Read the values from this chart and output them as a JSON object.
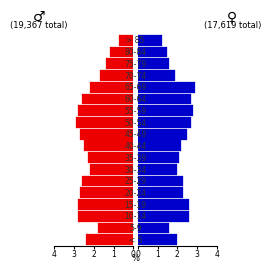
{
  "title_male": "♂",
  "title_female": "♀",
  "total_male": "(19,367 total)",
  "total_female": "(17,619 total)",
  "age_labels": [
    "< 5",
    "5-9",
    "10-14",
    "15-19",
    "20-24",
    "25-29",
    "30-34",
    "35-39",
    "40-44",
    "45-49",
    "50-54",
    "55-59",
    "60-64",
    "65-69",
    "70-74",
    "75-79",
    "80-84",
    "> 85"
  ],
  "male_pct": [
    2.4,
    1.8,
    2.8,
    2.8,
    2.7,
    2.6,
    2.2,
    2.3,
    2.5,
    2.7,
    2.9,
    2.8,
    2.6,
    2.2,
    1.7,
    1.4,
    1.2,
    0.7
  ],
  "female_pct": [
    2.0,
    1.6,
    2.6,
    2.6,
    2.3,
    2.3,
    2.0,
    2.1,
    2.2,
    2.5,
    2.7,
    2.8,
    2.7,
    2.9,
    1.9,
    1.6,
    1.5,
    1.2
  ],
  "male_color": "#ee0000",
  "female_color": "#0000cc",
  "bg_color": "#ffffff",
  "xlim": 4.0,
  "bar_height": 0.92,
  "tick_label_fontsize": 5.5,
  "age_label_fontsize": 5.5,
  "header_fontsize": 10,
  "total_fontsize": 6.0
}
